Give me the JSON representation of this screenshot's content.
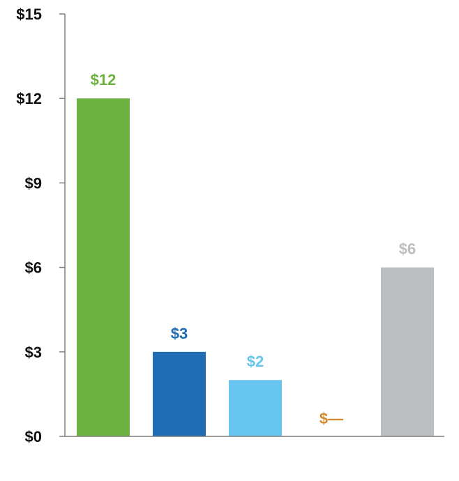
{
  "chart_data": {
    "type": "bar",
    "title": "",
    "xlabel": "",
    "ylabel": "",
    "ylim": [
      0,
      15
    ],
    "yticks": [
      0,
      3,
      6,
      9,
      12,
      15
    ],
    "ytick_labels": [
      "$0",
      "$3",
      "$6",
      "$9",
      "$12",
      "$15"
    ],
    "grid": false,
    "legend": "none",
    "categories": [
      "",
      "",
      "",
      "",
      ""
    ],
    "values": [
      12,
      3,
      2,
      0,
      6
    ],
    "data_labels": [
      "$12",
      "$3",
      "$2",
      "$—",
      "$6"
    ],
    "colors": [
      "#6cb33f",
      "#1f6db5",
      "#68c5ef",
      "#d48a2c",
      "#bcbec0"
    ]
  }
}
